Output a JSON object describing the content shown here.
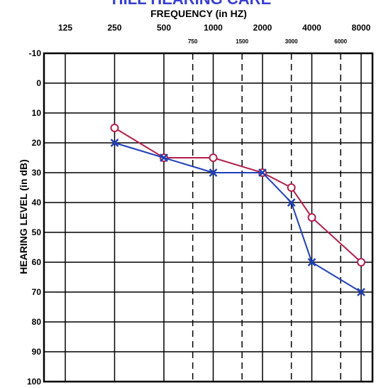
{
  "chart_data": {
    "type": "line",
    "xlabel": "FREQUENCY (in HZ)",
    "ylabel": "HEARING LEVEL (in dB)",
    "x_ticks": [
      "125",
      "250",
      "500",
      "1000",
      "2000",
      "4000",
      "8000"
    ],
    "x_mid_ticks": [
      "750",
      "1500",
      "3000",
      "6000"
    ],
    "y_ticks": [
      "-10",
      "0",
      "10",
      "20",
      "30",
      "40",
      "50",
      "60",
      "70",
      "80",
      "90",
      "100"
    ],
    "ylim": [
      -10,
      100
    ],
    "y_inverted": true,
    "x_scale": "log2",
    "grid": true,
    "series": [
      {
        "marker": "circle",
        "color": "#b0204a",
        "x": [
          250,
          500,
          1000,
          2000,
          3000,
          4000,
          8000
        ],
        "y": [
          15,
          25,
          25,
          30,
          35,
          45,
          60
        ]
      },
      {
        "marker": "x",
        "color": "#1f3fb8",
        "x": [
          250,
          500,
          1000,
          2000,
          3000,
          4000,
          8000
        ],
        "y": [
          20,
          25,
          30,
          30,
          40,
          60,
          70
        ]
      }
    ]
  }
}
